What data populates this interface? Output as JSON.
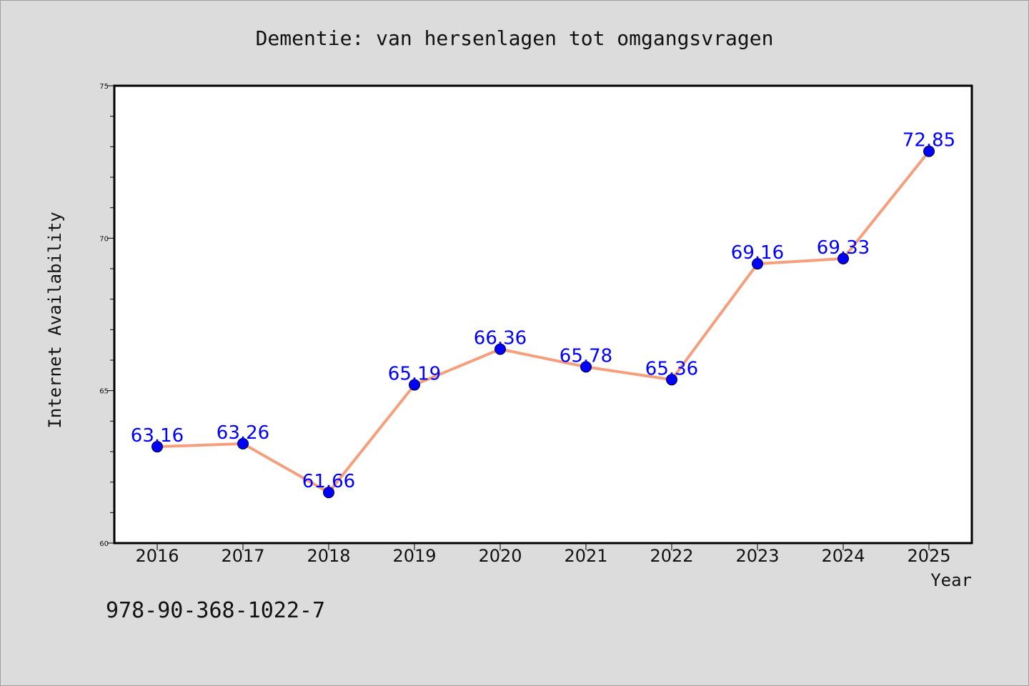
{
  "chart_data": {
    "type": "line",
    "title": "Dementie: van hersenlagen tot omgangsvragen",
    "xlabel": "Year",
    "ylabel": "Internet Availability",
    "categories": [
      "2016",
      "2017",
      "2018",
      "2019",
      "2020",
      "2021",
      "2022",
      "2023",
      "2024",
      "2025"
    ],
    "series": [
      {
        "values": [
          63.16,
          63.26,
          61.66,
          65.19,
          66.36,
          65.78,
          65.36,
          69.16,
          69.33,
          72.85
        ],
        "data_labels": [
          "63.16",
          "63.26",
          "61.66",
          "65.19",
          "66.36",
          "65.78",
          "65.36",
          "69.16",
          "69.33",
          "72.85"
        ]
      }
    ],
    "ylim": [
      60,
      75
    ],
    "yticks": [
      "60",
      "65",
      "70",
      "75"
    ],
    "grid": false,
    "colors": {
      "line": "#f4a07f",
      "marker": "#0000ff",
      "data_label": "#0000ff",
      "background": "#dcdcdc",
      "plot_background": "#ffffff"
    }
  },
  "footer_text": "978-90-368-1022-7"
}
